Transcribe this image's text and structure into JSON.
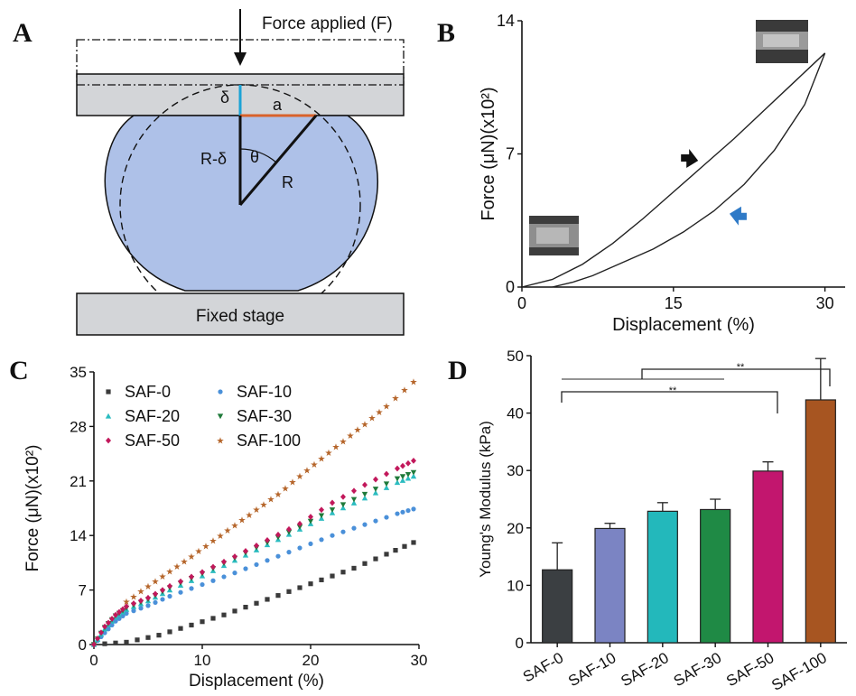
{
  "panels": {
    "A": {
      "letter": "A",
      "force_label": "Force applied (F)",
      "stage_label": "Fixed stage",
      "labels": {
        "delta": "δ",
        "a": "a",
        "r_minus_delta": "R-δ",
        "theta": "θ",
        "r": "R"
      },
      "colors": {
        "sphere": "#aec1e8",
        "plate": "#d3d5d8",
        "delta_line": "#1ba3d6",
        "a_line": "#d9622b"
      }
    },
    "B": {
      "letter": "B"
    },
    "C": {
      "letter": "C"
    },
    "D": {
      "letter": "D",
      "sig1": "**",
      "sig2": "**"
    }
  },
  "chart_data": [
    {
      "panel": "B",
      "type": "line",
      "xlabel": "Displacement (%)",
      "ylabel": "Force (μN)(x10²)",
      "xlim": [
        0,
        32
      ],
      "ylim": [
        0,
        14
      ],
      "xticks": [
        "0",
        "15",
        "30"
      ],
      "yticks": [
        "0",
        "7",
        "14"
      ],
      "xtick_values": [
        0,
        15,
        30
      ],
      "ytick_values": [
        0,
        7,
        14
      ],
      "series": [
        {
          "role": "loading",
          "x": [
            0,
            3,
            6,
            9,
            12,
            15,
            18,
            21,
            24,
            27,
            30
          ],
          "y": [
            0,
            0.4,
            1.2,
            2.3,
            3.6,
            5.0,
            6.4,
            7.8,
            9.3,
            10.8,
            12.3
          ]
        },
        {
          "role": "unloading",
          "x": [
            30,
            28,
            25,
            22,
            19,
            16,
            13,
            10,
            7,
            5,
            3
          ],
          "y": [
            12.3,
            9.6,
            7.2,
            5.4,
            4.0,
            2.9,
            2.0,
            1.3,
            0.6,
            0.25,
            0
          ]
        }
      ],
      "arrows": [
        {
          "x": 17,
          "y": 6.5,
          "color": "#111111"
        },
        {
          "x": 21,
          "y": 4.0,
          "color": "#2f7ac7"
        }
      ]
    },
    {
      "panel": "C",
      "type": "scatter",
      "xlabel": "Displacement (%)",
      "ylabel": "Force (μN)(x10²)",
      "xlim": [
        0,
        30
      ],
      "ylim": [
        0,
        35
      ],
      "xticks": [
        "0",
        "10",
        "20",
        "30"
      ],
      "yticks": [
        "0",
        "7",
        "14",
        "21",
        "28",
        "35"
      ],
      "xtick_values": [
        0,
        10,
        20,
        30
      ],
      "ytick_values": [
        0,
        7,
        14,
        21,
        28,
        35
      ],
      "series": [
        {
          "name": "SAF-0",
          "color": "#3a3a3a",
          "marker": "square",
          "x": [
            0,
            3,
            6,
            9,
            12,
            15,
            18,
            21,
            24,
            27,
            29.5
          ],
          "y": [
            0,
            0.3,
            1.2,
            2.5,
            3.8,
            5.3,
            6.8,
            8.3,
            9.8,
            11.6,
            13.1
          ]
        },
        {
          "name": "SAF-10",
          "color": "#4a90d9",
          "marker": "circle",
          "x": [
            0,
            1,
            2,
            3,
            5,
            7,
            10,
            13,
            16,
            19,
            22,
            25,
            28,
            29.5
          ],
          "y": [
            0,
            1.5,
            3.0,
            4.0,
            5.0,
            6.2,
            7.7,
            9.2,
            10.8,
            12.4,
            14.0,
            15.4,
            16.8,
            17.4
          ]
        },
        {
          "name": "SAF-20",
          "color": "#2bbcc0",
          "marker": "triangle-up",
          "x": [
            0,
            1,
            2,
            3,
            5,
            7,
            10,
            13,
            16,
            19,
            22,
            25,
            28,
            29.5
          ],
          "y": [
            0,
            2.0,
            3.5,
            4.5,
            5.6,
            7.0,
            8.8,
            10.8,
            12.8,
            14.8,
            16.9,
            18.8,
            20.8,
            21.6
          ]
        },
        {
          "name": "SAF-30",
          "color": "#1f7a3a",
          "marker": "triangle-down",
          "x": [
            0,
            1,
            2,
            3,
            5,
            7,
            10,
            13,
            16,
            19,
            22,
            25,
            28,
            29.5
          ],
          "y": [
            0,
            2.2,
            3.7,
            4.7,
            5.8,
            7.3,
            9.1,
            11.1,
            13.1,
            15.1,
            17.3,
            19.3,
            21.3,
            22.1
          ]
        },
        {
          "name": "SAF-50",
          "color": "#c2185b",
          "marker": "diamond",
          "x": [
            0,
            1,
            2,
            3,
            5,
            7,
            10,
            13,
            16,
            19,
            22,
            25,
            28,
            29.5
          ],
          "y": [
            0,
            2.3,
            3.8,
            4.9,
            6.0,
            7.5,
            9.3,
            11.3,
            13.4,
            15.5,
            18.2,
            20.5,
            22.6,
            23.6
          ]
        },
        {
          "name": "SAF-100",
          "color": "#b5652a",
          "marker": "star",
          "x": [
            3,
            5,
            7,
            9,
            11,
            13,
            15,
            17,
            19,
            21,
            23,
            25,
            27,
            29.5
          ],
          "y": [
            5.5,
            7.5,
            9.4,
            11.3,
            13.3,
            15.3,
            17.3,
            19.3,
            21.6,
            23.9,
            26.1,
            28.3,
            30.6,
            33.7
          ]
        }
      ]
    },
    {
      "panel": "D",
      "type": "bar",
      "ylabel": "Young's Modulus (kPa)",
      "ylim": [
        0,
        50
      ],
      "yticks": [
        "0",
        "10",
        "20",
        "30",
        "40",
        "50"
      ],
      "ytick_values": [
        0,
        10,
        20,
        30,
        40,
        50
      ],
      "categories": [
        "SAF-0",
        "SAF-10",
        "SAF-20",
        "SAF-30",
        "SAF-50",
        "SAF-100"
      ],
      "values": [
        12.7,
        19.9,
        22.9,
        23.2,
        29.9,
        42.3
      ],
      "errors": [
        4.7,
        0.9,
        1.5,
        1.8,
        1.6,
        7.2
      ],
      "colors": [
        "#3b3f42",
        "#7b84c3",
        "#23b8bb",
        "#1f8a45",
        "#c2166e",
        "#a75521"
      ]
    }
  ]
}
